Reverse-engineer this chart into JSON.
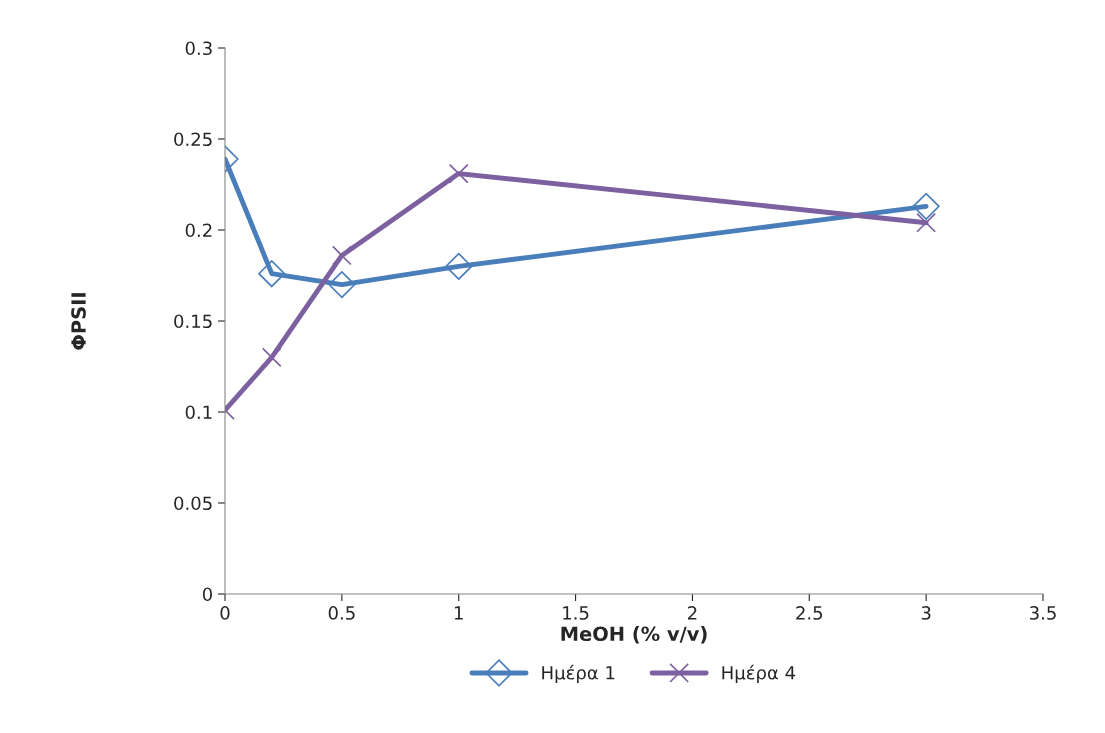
{
  "chart_data": {
    "type": "line",
    "xlabel": "MeOH (% v/v)",
    "ylabel": "ΦPSII",
    "x": [
      0,
      0.2,
      0.5,
      1,
      3
    ],
    "series": [
      {
        "name": "Ημέρα 1",
        "color": "#4a7ebb",
        "marker": "diamond",
        "values": [
          0.239,
          0.176,
          0.17,
          0.18,
          0.213
        ]
      },
      {
        "name": "Ημέρα 4",
        "color": "#7d60a0",
        "marker": "cross",
        "values": [
          0.101,
          0.13,
          0.186,
          0.231,
          0.204
        ]
      }
    ],
    "xlim": [
      0,
      3.5
    ],
    "xticks": [
      0,
      0.5,
      1,
      1.5,
      2,
      2.5,
      3,
      3.5
    ],
    "ylim": [
      0,
      0.3
    ],
    "yticks": [
      0,
      0.05,
      0.1,
      0.15,
      0.2,
      0.25,
      0.3
    ],
    "grid": false,
    "legend": "bottom",
    "line_style": "solid"
  }
}
